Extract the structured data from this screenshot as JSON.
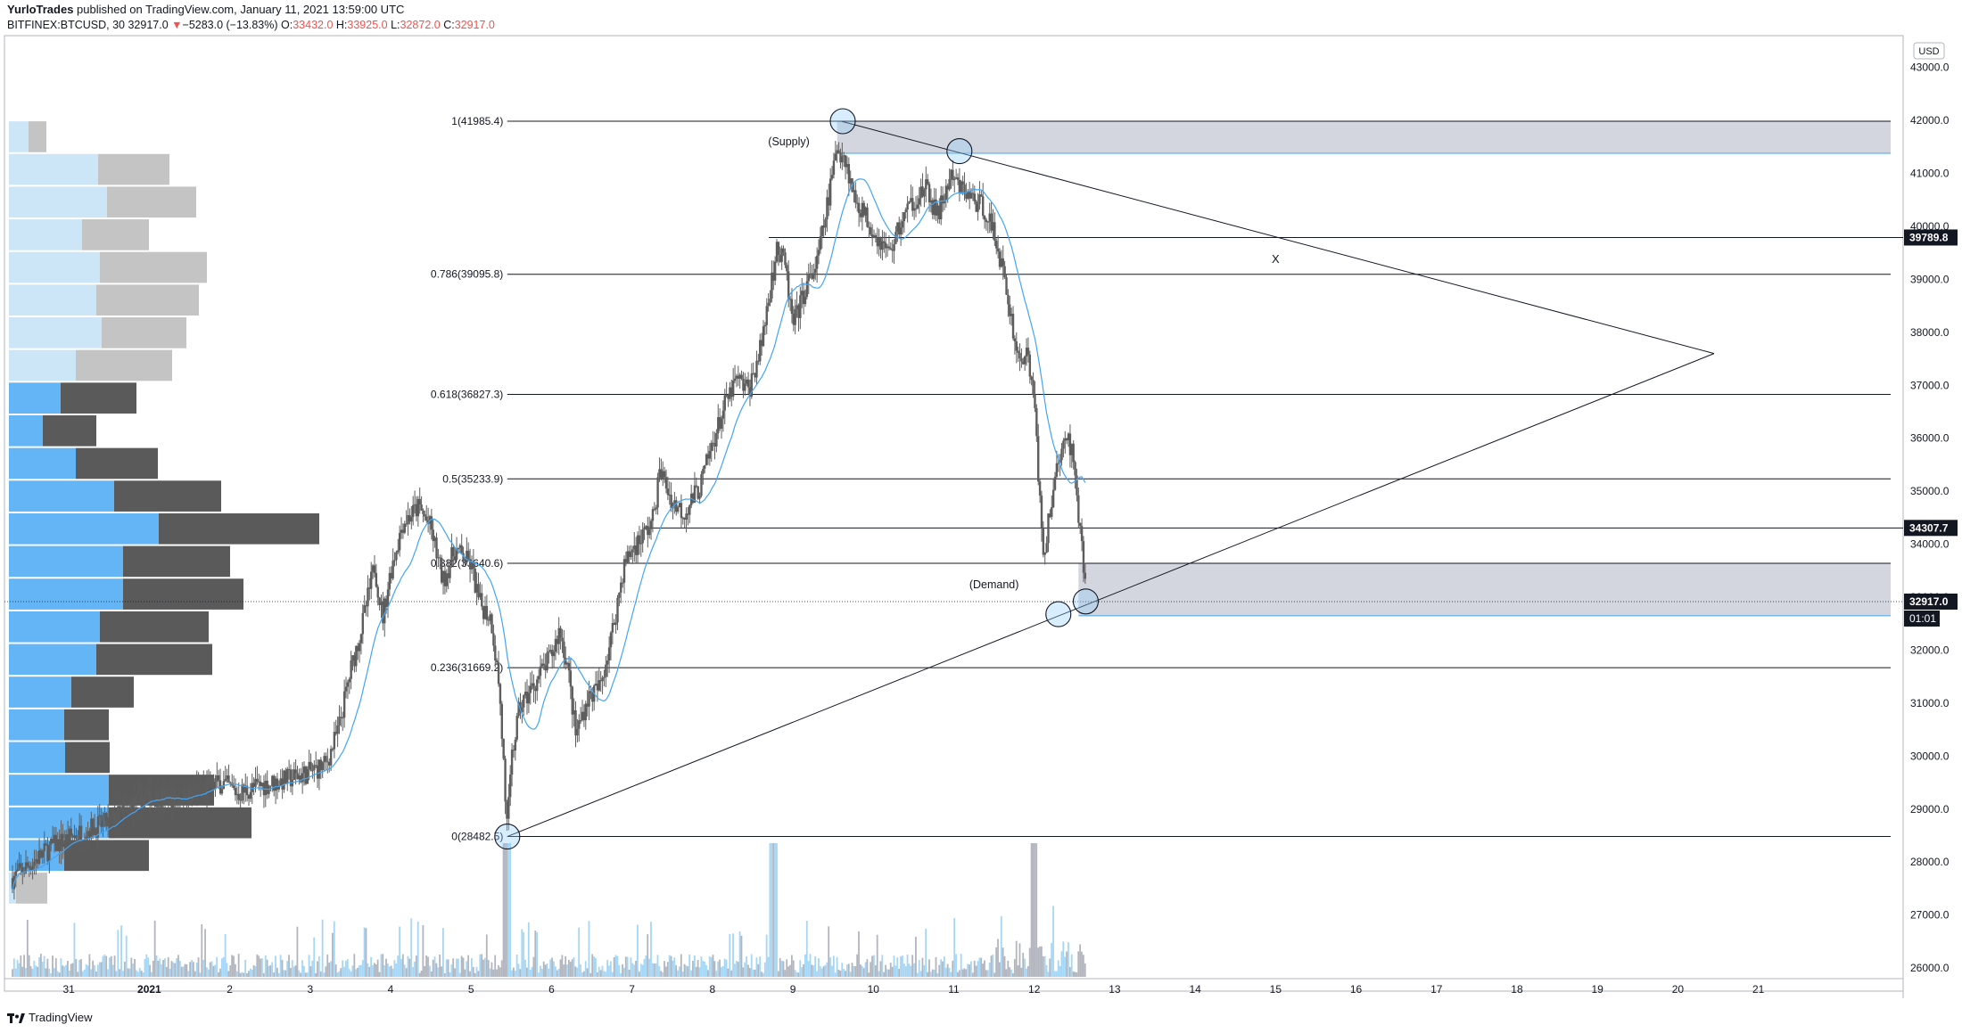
{
  "header": {
    "author": "YurloTrades",
    "published_text": " published on TradingView.com, January 11, 2021 13:59:00 UTC",
    "symbol": "BITFINEX:BTCUSD, 30",
    "last": "32917.0",
    "change_arrow": "▼",
    "change": "−5283.0 (−13.83%)",
    "o_label": "O:",
    "o_value": "33432.0",
    "h_label": "H:",
    "h_value": "33925.0",
    "l_label": "L:",
    "l_value": "32872.0",
    "c_label": "C:",
    "c_value": "32917.0"
  },
  "footer": {
    "brand": "TradingView"
  },
  "colors": {
    "candle": "#5d5d5d",
    "ma_line": "#42a5f5",
    "fib_line": "#131722",
    "zone_fill": "#d1d4dc",
    "zone_border": "#42a5f5",
    "vp_up": "#64b5f6",
    "vp_down": "#5a5a5a",
    "vp_up_light": "#cde6f7",
    "vp_down_light": "#c4c4c4",
    "volume_down": "#b2b5be",
    "volume_up": "#a5d6f5",
    "last_price_tag": "#131722"
  },
  "chart_data": {
    "type": "candlestick",
    "title": "BITFINEX:BTCUSD, 30",
    "price_axis": {
      "currency_label": "USD",
      "ticks": [
        43000,
        42000,
        41000,
        40000,
        39000,
        38000,
        37000,
        36000,
        35000,
        34000,
        33000,
        32000,
        31000,
        30000,
        29000,
        28000,
        27000,
        26000
      ],
      "tick_labels": [
        "43000.0",
        "42000.0",
        "41000.0",
        "40000.0",
        "39000.0",
        "38000.0",
        "37000.0",
        "36000.0",
        "35000.0",
        "34000.0",
        "33000.0",
        "32000.0",
        "31000.0",
        "30000.0",
        "29000.0",
        "28000.0",
        "27000.0",
        "26000.0"
      ],
      "range": [
        25800,
        43600
      ]
    },
    "time_axis": {
      "labels": [
        "31",
        "2021",
        "2",
        "3",
        "4",
        "5",
        "6",
        "7",
        "8",
        "9",
        "10",
        "11",
        "12",
        "13",
        "14",
        "15",
        "16",
        "17",
        "18",
        "19",
        "20",
        "21"
      ],
      "range_days": [
        -1.8,
        21.8
      ]
    },
    "price_tags": [
      {
        "label": "39789.8",
        "price": 39789.8
      },
      {
        "label": "34307.7",
        "price": 34307.7
      },
      {
        "label": "32917.0",
        "price": 32917.0,
        "sub_label": "01:01"
      }
    ],
    "fibonacci": [
      {
        "label": "1(41985.4)",
        "price": 41985.4
      },
      {
        "label": "0.786(39095.8)",
        "price": 39095.8
      },
      {
        "label": "0.618(36827.3)",
        "price": 36827.3
      },
      {
        "label": "0.5(35233.9)",
        "price": 35233.9
      },
      {
        "label": "0.382(33640.6)",
        "price": 33640.6
      },
      {
        "label": "0.236(31669.2)",
        "price": 31669.2
      },
      {
        "label": "0(28482.5)",
        "price": 28482.5
      }
    ],
    "horizontal_lines": [
      39789.8,
      34307.7
    ],
    "zones": [
      {
        "label": "(Supply)",
        "top": 41985,
        "bottom": 41380,
        "start_day": 8.55
      },
      {
        "label": "(Demand)",
        "top": 33640,
        "bottom": 32650,
        "start_day": 11.55
      }
    ],
    "trendlines": [
      {
        "from": {
          "day": 8.6,
          "price": 41985
        },
        "to": {
          "day": 19.45,
          "price": 37600
        }
      },
      {
        "from": {
          "day": 4.45,
          "price": 28482
        },
        "to": {
          "day": 19.45,
          "price": 37600
        }
      }
    ],
    "markers": [
      {
        "day": 8.62,
        "price": 41985
      },
      {
        "day": 10.07,
        "price": 41420
      },
      {
        "day": 11.3,
        "price": 32680
      },
      {
        "day": 11.64,
        "price": 32920
      },
      {
        "day": 4.45,
        "price": 28482
      }
    ],
    "annotations": [
      {
        "text": "X",
        "day": 14.0,
        "price": 39380
      }
    ],
    "price_path": [
      [
        -1.7,
        27700
      ],
      [
        -1.2,
        28300
      ],
      [
        -0.8,
        28600
      ],
      [
        -0.5,
        28750
      ],
      [
        -0.2,
        29100
      ],
      [
        0.0,
        29250
      ],
      [
        0.3,
        29200
      ],
      [
        0.6,
        29350
      ],
      [
        0.9,
        29500
      ],
      [
        1.1,
        29300
      ],
      [
        1.4,
        29450
      ],
      [
        1.7,
        29550
      ],
      [
        2.0,
        29700
      ],
      [
        2.2,
        29850
      ],
      [
        2.35,
        30500
      ],
      [
        2.5,
        31600
      ],
      [
        2.65,
        32500
      ],
      [
        2.8,
        33600
      ],
      [
        2.9,
        32600
      ],
      [
        3.0,
        33500
      ],
      [
        3.15,
        34400
      ],
      [
        3.35,
        34700
      ],
      [
        3.5,
        34300
      ],
      [
        3.65,
        33300
      ],
      [
        3.8,
        33900
      ],
      [
        4.0,
        33600
      ],
      [
        4.1,
        32900
      ],
      [
        4.25,
        32600
      ],
      [
        4.35,
        31300
      ],
      [
        4.45,
        28600
      ],
      [
        4.5,
        29900
      ],
      [
        4.6,
        30900
      ],
      [
        4.8,
        31400
      ],
      [
        5.0,
        31900
      ],
      [
        5.1,
        32400
      ],
      [
        5.2,
        31700
      ],
      [
        5.3,
        30400
      ],
      [
        5.45,
        31100
      ],
      [
        5.6,
        31300
      ],
      [
        5.75,
        32300
      ],
      [
        5.9,
        33600
      ],
      [
        6.0,
        33900
      ],
      [
        6.15,
        34200
      ],
      [
        6.25,
        34400
      ],
      [
        6.35,
        35400
      ],
      [
        6.5,
        34800
      ],
      [
        6.65,
        34600
      ],
      [
        6.85,
        35100
      ],
      [
        7.0,
        35900
      ],
      [
        7.15,
        36600
      ],
      [
        7.3,
        37100
      ],
      [
        7.45,
        36900
      ],
      [
        7.6,
        37700
      ],
      [
        7.7,
        38700
      ],
      [
        7.8,
        39500
      ],
      [
        7.9,
        39300
      ],
      [
        8.0,
        38100
      ],
      [
        8.15,
        38800
      ],
      [
        8.3,
        39300
      ],
      [
        8.45,
        40600
      ],
      [
        8.55,
        41500
      ],
      [
        8.65,
        41300
      ],
      [
        8.75,
        40600
      ],
      [
        8.9,
        40200
      ],
      [
        9.05,
        39800
      ],
      [
        9.2,
        39500
      ],
      [
        9.35,
        40100
      ],
      [
        9.5,
        40500
      ],
      [
        9.65,
        40700
      ],
      [
        9.8,
        40200
      ],
      [
        9.95,
        40900
      ],
      [
        10.1,
        40700
      ],
      [
        10.25,
        40500
      ],
      [
        10.4,
        40300
      ],
      [
        10.55,
        39600
      ],
      [
        10.7,
        38400
      ],
      [
        10.8,
        37500
      ],
      [
        10.9,
        37600
      ],
      [
        11.0,
        36800
      ],
      [
        11.05,
        35200
      ],
      [
        11.12,
        33800
      ],
      [
        11.2,
        34700
      ],
      [
        11.3,
        35600
      ],
      [
        11.42,
        36000
      ],
      [
        11.5,
        35600
      ],
      [
        11.55,
        34400
      ],
      [
        11.6,
        33800
      ],
      [
        11.65,
        32917
      ]
    ],
    "moving_average": "simple moving average overlay (light blue)",
    "volume_profile_rows": 24,
    "volume_profile_note": "Visible range volume profile on left side"
  }
}
